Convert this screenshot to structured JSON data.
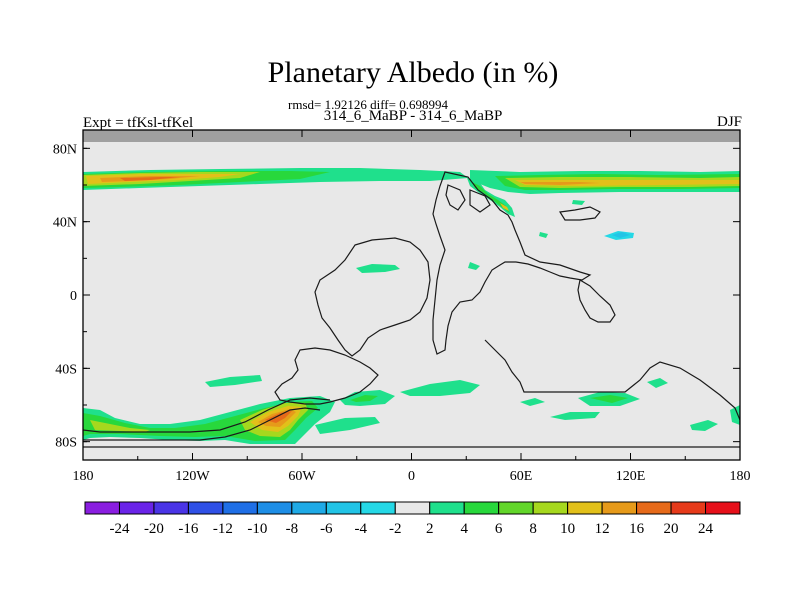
{
  "chart_data": {
    "type": "heatmap",
    "title": "Planetary Albedo (in %)",
    "subtitle_stats": "rmsd= 1.92126 diff= 0.698994",
    "subtitle_case": "314_6_MaBP - 314_6_MaBP",
    "left_label": "Expt = tfKsl-tfKel",
    "right_label": "DJF",
    "xlabel": "",
    "ylabel": "",
    "xlim": [
      -180,
      180
    ],
    "ylim": [
      -90,
      90
    ],
    "x_ticks": [
      {
        "value": -180,
        "label": "180"
      },
      {
        "value": -120,
        "label": "120W"
      },
      {
        "value": -60,
        "label": "60W"
      },
      {
        "value": 0,
        "label": "0"
      },
      {
        "value": 60,
        "label": "60E"
      },
      {
        "value": 120,
        "label": "120E"
      },
      {
        "value": 180,
        "label": "180"
      }
    ],
    "y_ticks": [
      {
        "value": 80,
        "label": "80N"
      },
      {
        "value": 40,
        "label": "40N"
      },
      {
        "value": 0,
        "label": "0"
      },
      {
        "value": -40,
        "label": "40S"
      },
      {
        "value": -80,
        "label": "80S"
      }
    ],
    "colorbar": {
      "levels": [
        "-24",
        "-20",
        "-16",
        "-12",
        "-10",
        "-8",
        "-6",
        "-4",
        "-2",
        "2",
        "4",
        "6",
        "8",
        "10",
        "12",
        "16",
        "20",
        "24"
      ],
      "colors": [
        "#8a1ee0",
        "#6a24e8",
        "#4a34e6",
        "#2f50e6",
        "#1f6fe6",
        "#1e8ee6",
        "#1faae6",
        "#22c4e6",
        "#25d8e6",
        "#e8e8e8",
        "#1fe08c",
        "#28d83c",
        "#62d62a",
        "#a6d81e",
        "#e2c01a",
        "#e69a1a",
        "#e66a1a",
        "#e63a1a",
        "#e6101a"
      ]
    },
    "background_color": "#e8e8e8",
    "missing_color": "#a0a0a0",
    "fields": [
      {
        "name": "arctic-band-west",
        "value_range": [
          4,
          24
        ],
        "lon_range": [
          -180,
          30
        ],
        "lat_range": [
          54,
          72
        ]
      },
      {
        "name": "arctic-band-east",
        "value_range": [
          4,
          16
        ],
        "lon_range": [
          30,
          180
        ],
        "lat_range": [
          54,
          70
        ]
      },
      {
        "name": "southern-ocean-west",
        "value_range": [
          4,
          20
        ],
        "lon_range": [
          -180,
          -55
        ],
        "lat_range": [
          -82,
          -60
        ]
      },
      {
        "name": "southern-andes-peak",
        "value_range": [
          10,
          20
        ],
        "lon_range": [
          -78,
          -55
        ],
        "lat_range": [
          -72,
          -60
        ]
      },
      {
        "name": "southern-ocean-patches",
        "value_range": [
          2,
          6
        ],
        "lon_range": [
          -55,
          180
        ],
        "lat_range": [
          -80,
          -50
        ]
      },
      {
        "name": "tropical-atlantic",
        "value_range": [
          2,
          4
        ],
        "lon_range": [
          -25,
          -5
        ],
        "lat_range": [
          13,
          18
        ]
      },
      {
        "name": "east-asia-negative",
        "value_range": [
          -4,
          -2
        ],
        "lon_range": [
          107,
          123
        ],
        "lat_range": [
          30,
          34
        ]
      }
    ],
    "grid": false,
    "legend_position": "bottom"
  }
}
